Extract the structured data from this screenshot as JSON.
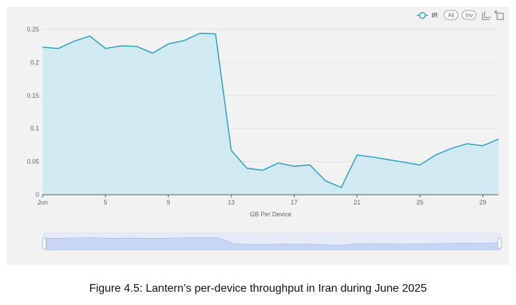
{
  "chart_data": {
    "type": "area",
    "xlabel": "GB Per Device",
    "ylabel": "",
    "x": [
      1,
      2,
      3,
      4,
      5,
      6,
      7,
      8,
      9,
      10,
      11,
      12,
      13,
      14,
      15,
      16,
      17,
      18,
      19,
      20,
      21,
      22,
      23,
      24,
      25,
      26,
      27,
      28,
      29,
      30
    ],
    "x_ticks": [
      1,
      5,
      9,
      13,
      17,
      21,
      25,
      29
    ],
    "x_tick_labels": [
      "Jun",
      "5",
      "9",
      "13",
      "17",
      "21",
      "25",
      "29"
    ],
    "xlim": [
      1,
      30
    ],
    "ylim": [
      0,
      0.25
    ],
    "y_ticks": [
      0,
      0.05,
      0.1,
      0.15,
      0.2,
      0.25
    ],
    "y_tick_labels": [
      "0",
      "0.05",
      "0.1",
      "0.15",
      "0.2",
      "0.25"
    ],
    "grid": true,
    "legend_position": "top-right",
    "series": [
      {
        "name": "IR",
        "values": [
          0.223,
          0.221,
          0.232,
          0.24,
          0.221,
          0.225,
          0.224,
          0.214,
          0.228,
          0.233,
          0.244,
          0.243,
          0.067,
          0.04,
          0.037,
          0.048,
          0.043,
          0.045,
          0.021,
          0.011,
          0.06,
          0.057,
          0.053,
          0.049,
          0.045,
          0.06,
          0.07,
          0.077,
          0.074,
          0.084
        ]
      }
    ],
    "colors": {
      "line": "#2ea3c0",
      "fill": "#cde8ef",
      "grid": "#e2e2e2",
      "zoom_fill": "#c9d6f2",
      "zoom_line": "#aac0ee"
    }
  },
  "toolbar": {
    "legend_label": "IR",
    "all_label": "All",
    "inv_label": "Inv",
    "icons": [
      "area-zoom-icon",
      "zoom-reset-icon"
    ]
  },
  "caption": "Figure 4.5: Lantern’s per-device throughput in Iran during June 2025"
}
